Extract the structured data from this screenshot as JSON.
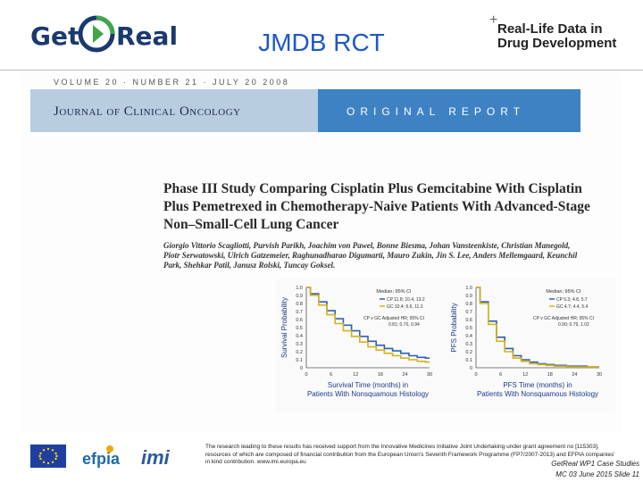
{
  "header": {
    "logo_left_get": "Get",
    "logo_left_real": "Real",
    "title": "JMDB RCT",
    "logo_right_line1": "Real-Life Data in",
    "logo_right_line2": "Drug Development"
  },
  "journal": {
    "volume_line": "VOLUME 20 · NUMBER 21 · JULY 20 2008",
    "name": "Journal of Clinical Oncology",
    "section": "ORIGINAL REPORT"
  },
  "paper": {
    "title": "Phase III Study Comparing Cisplatin Plus Gemcitabine With Cisplatin Plus Pemetrexed in Chemotherapy-Naive Patients With Advanced-Stage Non–Small-Cell Lung Cancer",
    "authors": "Giorgio Vittorio Scagliotti, Purvish Parikh, Joachim von Pawel, Bonne Biesma, Johan Vansteenkiste, Christian Manegold, Piotr Serwatowski, Ulrich Gatzemeier, Raghunadharao Digumarti, Mauro Zukin, Jin S. Lee, Anders Mellemgaard, Keunchil Park, Shehkar Patil, Janusz Rolski, Tuncay Goksel."
  },
  "chart_data": [
    {
      "type": "line",
      "ylabel": "Survival Probability",
      "xlabel": "Survival Time (months) in Patients With Nonsquamous Histology",
      "x_ticks": [
        "0",
        "6",
        "12",
        "18",
        "24",
        "30"
      ],
      "y_ticks": [
        "1.0",
        "0.9",
        "0.8",
        "0.7",
        "0.6",
        "0.5",
        "0.4",
        "0.3",
        "0.2",
        "0.1",
        "0"
      ],
      "xlim": [
        0,
        30
      ],
      "ylim": [
        0,
        1
      ],
      "legend_title": "Median; 95% CI",
      "legend": [
        "CP  11.8; 10.4, 13.2",
        "GC  10.4; 9.6, 11.2"
      ],
      "hr_label": "CP v GC   Adjusted HR; 95% CI",
      "hr_value": "0.81; 0.70, 0.94",
      "colors": {
        "CP": "#2e5fb3",
        "GC": "#d6b21c"
      },
      "series": [
        {
          "name": "CP",
          "x": [
            0,
            2,
            4,
            6,
            8,
            10,
            12,
            14,
            16,
            18,
            20,
            22,
            24,
            26,
            28,
            30
          ],
          "y": [
            1.0,
            0.92,
            0.82,
            0.71,
            0.61,
            0.53,
            0.46,
            0.39,
            0.33,
            0.28,
            0.24,
            0.21,
            0.18,
            0.15,
            0.13,
            0.12
          ]
        },
        {
          "name": "GC",
          "x": [
            0,
            2,
            4,
            6,
            8,
            10,
            12,
            14,
            16,
            18,
            20,
            22,
            24,
            26,
            28,
            30
          ],
          "y": [
            1.0,
            0.9,
            0.78,
            0.66,
            0.55,
            0.46,
            0.39,
            0.32,
            0.26,
            0.22,
            0.18,
            0.15,
            0.12,
            0.1,
            0.08,
            0.07
          ]
        }
      ]
    },
    {
      "type": "line",
      "ylabel": "PFS Probability",
      "xlabel": "PFS Time (months) in Patients With Nonsquamous Histology",
      "x_ticks": [
        "0",
        "6",
        "12",
        "18",
        "24",
        "30"
      ],
      "y_ticks": [
        "1.0",
        "0.9",
        "0.8",
        "0.7",
        "0.6",
        "0.5",
        "0.4",
        "0.3",
        "0.2",
        "0.1",
        "0"
      ],
      "xlim": [
        0,
        30
      ],
      "ylim": [
        0,
        1
      ],
      "legend_title": "Median; 95% CI",
      "legend": [
        "CP  5.3; 4.8, 5.7",
        "GC  4.7; 4.4, 5.4"
      ],
      "hr_label": "CP v GC   Adjusted HR; 95% CI",
      "hr_value": "0.90; 0.79, 1.02",
      "colors": {
        "CP": "#2e5fb3",
        "GC": "#d6b21c"
      },
      "series": [
        {
          "name": "CP",
          "x": [
            0,
            2,
            4,
            6,
            8,
            10,
            12,
            14,
            16,
            18,
            20,
            24,
            30
          ],
          "y": [
            1.0,
            0.82,
            0.58,
            0.38,
            0.24,
            0.15,
            0.1,
            0.07,
            0.05,
            0.04,
            0.03,
            0.02,
            0.01
          ]
        },
        {
          "name": "GC",
          "x": [
            0,
            2,
            4,
            6,
            8,
            10,
            12,
            14,
            16,
            18,
            20,
            24,
            30
          ],
          "y": [
            1.0,
            0.8,
            0.54,
            0.33,
            0.2,
            0.12,
            0.08,
            0.05,
            0.04,
            0.03,
            0.02,
            0.01,
            0.01
          ]
        }
      ]
    }
  ],
  "footer": {
    "efpia": "efpia",
    "imi": "imi",
    "disclaimer": "The research leading to these results has received support from the Innovative Medicines Initiative Joint Undertaking under grant agreement no [115303], resources of which are composed of financial contribution from the European Union's Seventh Framework Programme (FP7/2007-2013) and EFPIA companies' in kind contribution. www.imi.europa.eu",
    "case_study": "GetReal WP1 Case Studies",
    "slide_info": "MC 03 June 2015   Slide 11"
  }
}
